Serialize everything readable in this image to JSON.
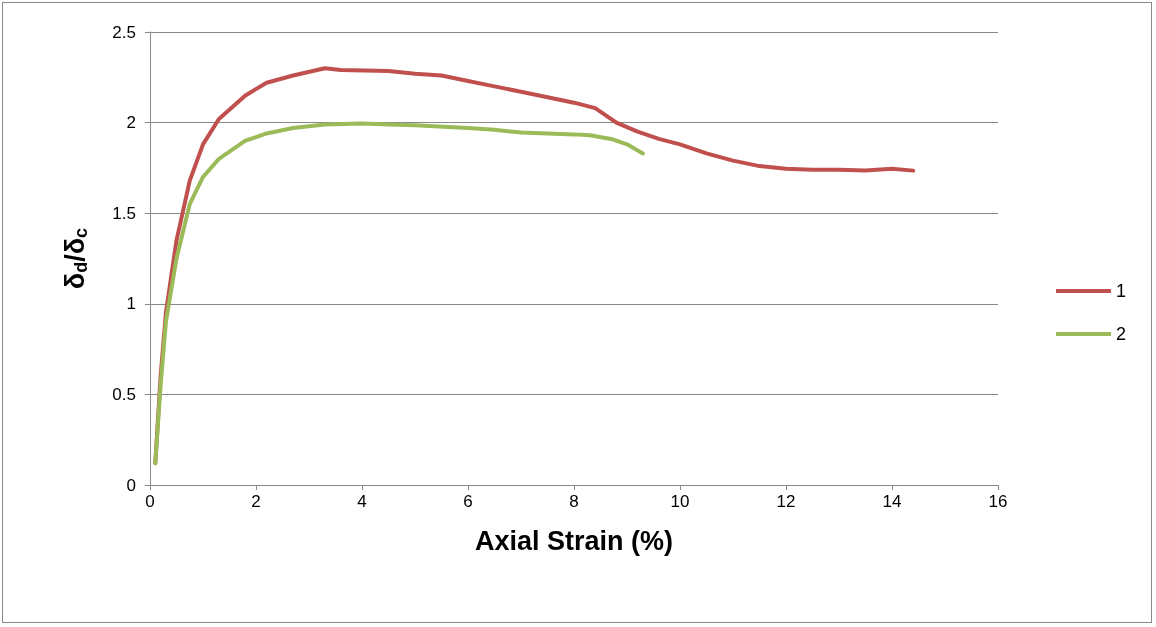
{
  "chart_data": {
    "type": "line",
    "xlabel": "Axial Strain (%)",
    "ylabel": "δ$_{d}$/δ$_{c}$",
    "xlim": [
      0,
      16
    ],
    "xticks": [
      0,
      2,
      4,
      6,
      8,
      10,
      12,
      14,
      16
    ],
    "ylim": [
      0,
      2.5
    ],
    "yticks": [
      0,
      0.5,
      1,
      1.5,
      2,
      2.5
    ],
    "grid": "y",
    "legend": "right",
    "marker": "none",
    "line_style": "solid",
    "series": [
      {
        "name": "1",
        "color": "#c0504d",
        "x": [
          0.1,
          0.2,
          0.3,
          0.5,
          0.75,
          1.0,
          1.3,
          1.8,
          2.2,
          2.7,
          3.3,
          3.6,
          4.5,
          5.0,
          5.5,
          6.0,
          6.5,
          7.0,
          7.5,
          8.0,
          8.4,
          8.8,
          9.2,
          9.6,
          10.0,
          10.5,
          11.0,
          11.5,
          12.0,
          12.5,
          13.0,
          13.5,
          14.0,
          14.4
        ],
        "values": [
          0.12,
          0.6,
          0.95,
          1.35,
          1.68,
          1.88,
          2.02,
          2.15,
          2.22,
          2.26,
          2.3,
          2.29,
          2.285,
          2.27,
          2.26,
          2.23,
          2.2,
          2.17,
          2.14,
          2.11,
          2.08,
          2.0,
          1.95,
          1.91,
          1.88,
          1.83,
          1.79,
          1.76,
          1.745,
          1.74,
          1.74,
          1.735,
          1.745,
          1.735
        ]
      },
      {
        "name": "2",
        "color": "#9bbb59",
        "x": [
          0.1,
          0.2,
          0.3,
          0.5,
          0.75,
          1.0,
          1.3,
          1.8,
          2.2,
          2.7,
          3.3,
          4.0,
          4.5,
          5.0,
          6.0,
          6.5,
          7.0,
          7.5,
          8.0,
          8.3,
          8.7,
          9.0,
          9.3
        ],
        "values": [
          0.12,
          0.55,
          0.9,
          1.25,
          1.55,
          1.7,
          1.8,
          1.9,
          1.94,
          1.97,
          1.99,
          1.995,
          1.99,
          1.985,
          1.97,
          1.96,
          1.945,
          1.94,
          1.935,
          1.93,
          1.91,
          1.88,
          1.83
        ]
      }
    ]
  }
}
